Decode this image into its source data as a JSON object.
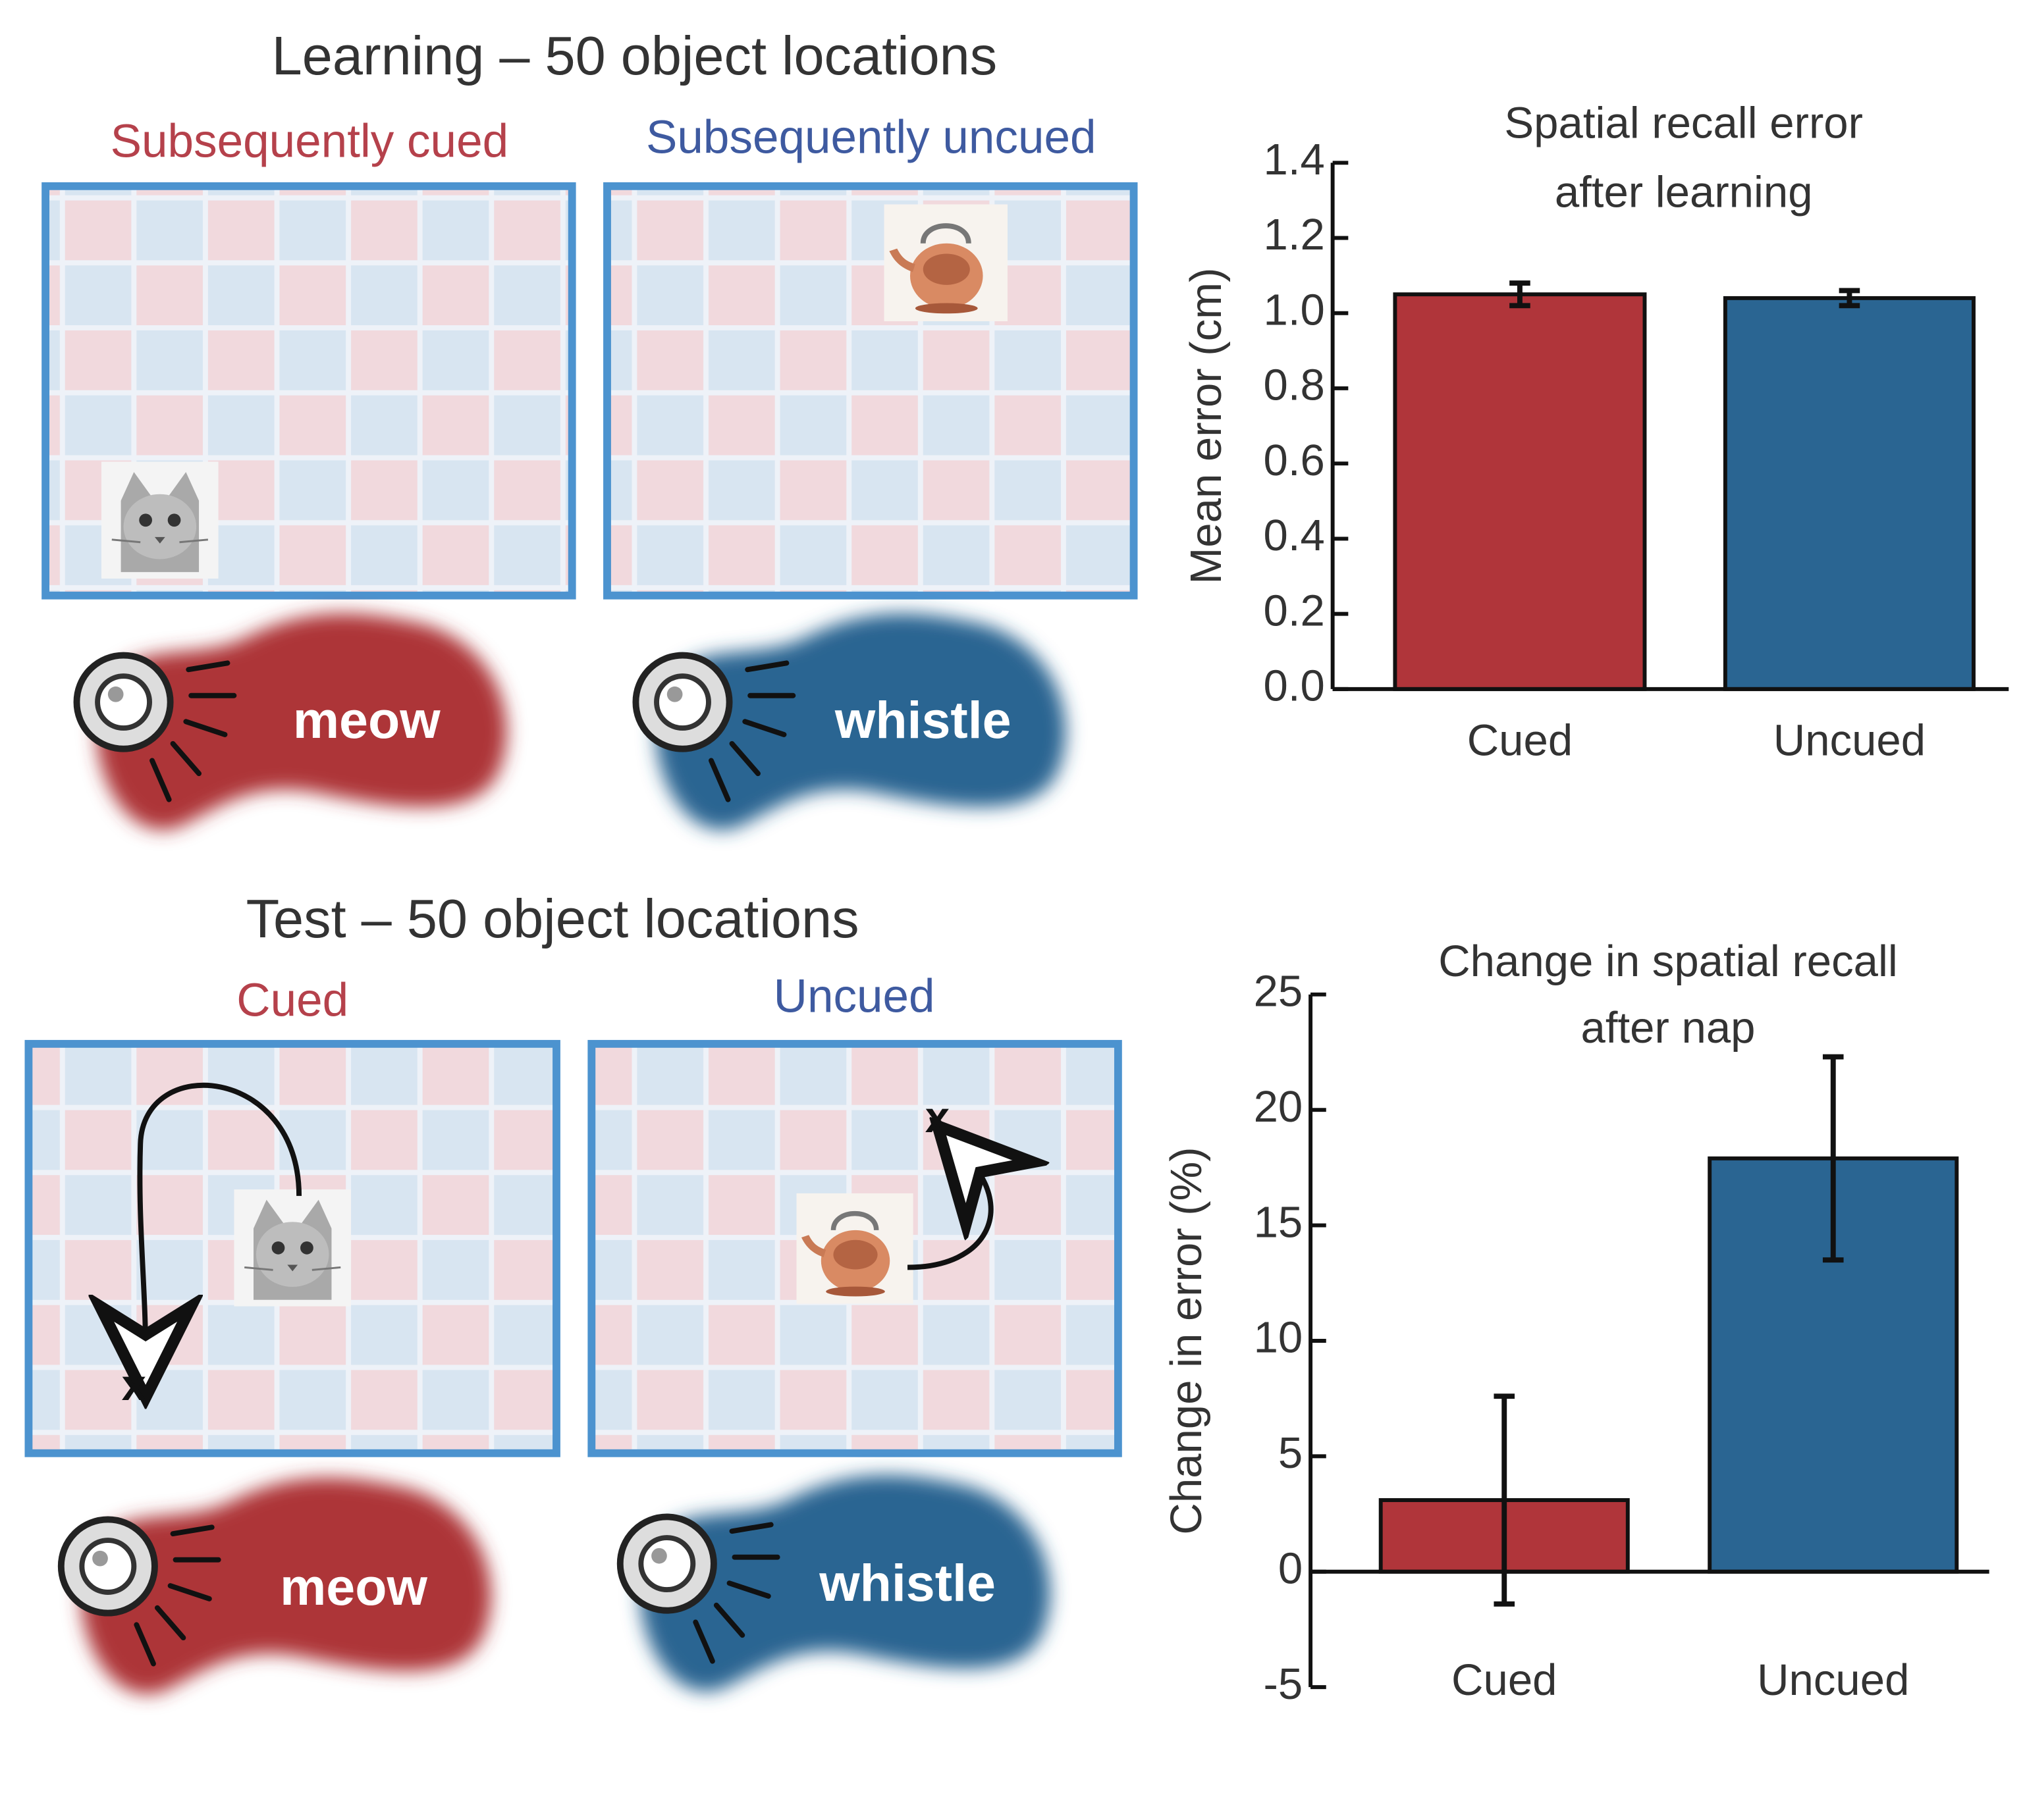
{
  "learning": {
    "title": "Learning – 50 object locations",
    "left_label": "Subsequently cued",
    "right_label": "Subsequently uncued",
    "left_sound": "meow",
    "right_sound": "whistle"
  },
  "test": {
    "title": "Test – 50 object locations",
    "left_label": "Cued",
    "right_label": "Uncued",
    "left_sound": "meow",
    "right_sound": "whistle",
    "left_marker": "x",
    "right_marker": "x"
  },
  "chart_data": [
    {
      "type": "bar",
      "title": [
        "Spatial recall error",
        "after learning"
      ],
      "ylabel": "Mean error (cm)",
      "categories": [
        "Cued",
        "Uncued"
      ],
      "values": [
        1.05,
        1.04
      ],
      "errors": [
        0.03,
        0.02
      ],
      "colors": [
        "#b0353a",
        "#2a6592"
      ],
      "ylim": [
        0,
        1.4
      ],
      "yticks": [
        {
          "value": 0,
          "label": "0.0"
        },
        0.2,
        0.4,
        0.6,
        0.8,
        {
          "value": 1,
          "label": "1.0"
        },
        1.2,
        1.4
      ]
    },
    {
      "type": "bar",
      "title": [
        "Change in spatial recall",
        "after nap"
      ],
      "ylabel": "Change in error (%)",
      "categories": [
        "Cued",
        "Uncued"
      ],
      "values": [
        3.1,
        17.9
      ],
      "errors": [
        4.5,
        4.4
      ],
      "colors": [
        "#b0353a",
        "#2a6592"
      ],
      "ylim": [
        -5,
        25
      ],
      "yticks": [
        -5,
        0,
        5,
        10,
        15,
        20,
        25
      ]
    }
  ]
}
